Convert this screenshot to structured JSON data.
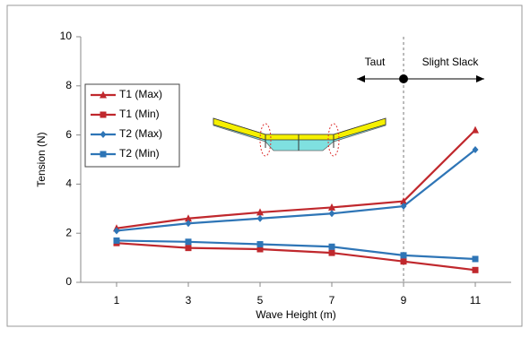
{
  "chart_data": {
    "type": "line",
    "x_label": "Wave Height (m)",
    "y_label": "Tension (N)",
    "x": [
      1,
      3,
      5,
      7,
      9,
      11
    ],
    "series": [
      {
        "name": "T1 (Max)",
        "color": "#c0282d",
        "marker": "triangle",
        "values": [
          2.2,
          2.6,
          2.85,
          3.05,
          3.3,
          6.2
        ]
      },
      {
        "name": "T1 (Min)",
        "color": "#c0282d",
        "marker": "square",
        "values": [
          1.6,
          1.4,
          1.35,
          1.2,
          0.85,
          0.5
        ]
      },
      {
        "name": "T2 (Max)",
        "color": "#2e75b6",
        "marker": "diamond",
        "values": [
          2.1,
          2.4,
          2.6,
          2.8,
          3.1,
          5.4
        ]
      },
      {
        "name": "T2 (Min)",
        "color": "#2e75b6",
        "marker": "square",
        "values": [
          1.7,
          1.65,
          1.55,
          1.45,
          1.1,
          0.95
        ]
      }
    ],
    "xlim": [
      0,
      12
    ],
    "xticks": [
      1,
      3,
      5,
      7,
      9,
      11
    ],
    "ylim": [
      0,
      10
    ],
    "yticks": [
      0,
      2,
      4,
      6,
      8,
      10
    ],
    "vline": 9,
    "annotations": [
      "Taut",
      "Slight Slack"
    ],
    "legend": "upper left"
  }
}
